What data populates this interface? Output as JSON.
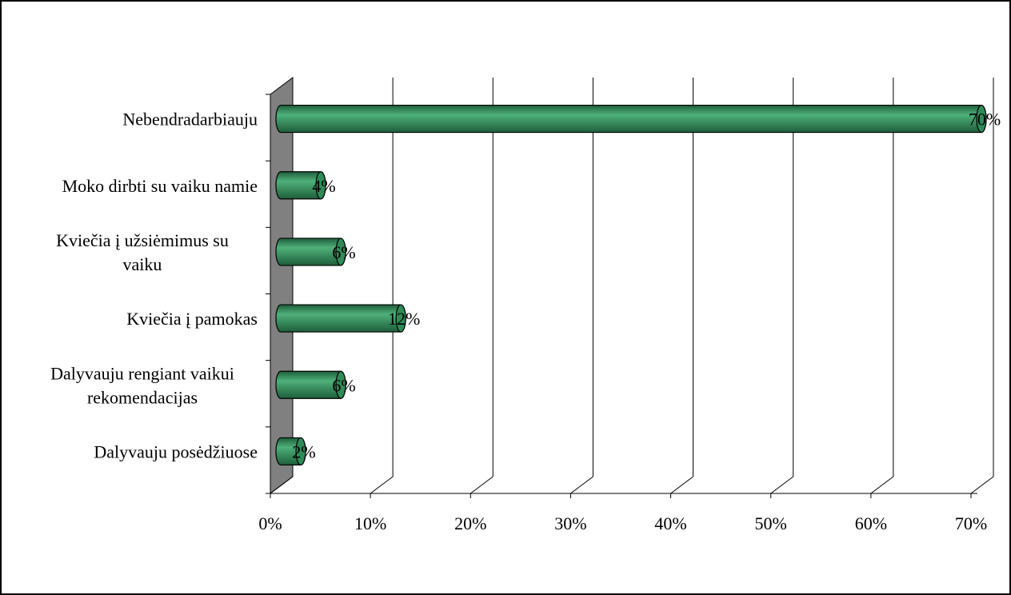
{
  "chart_data": {
    "type": "bar",
    "orientation": "horizontal",
    "style": "3d-cylinder",
    "categories": [
      [
        "Nebendradarbiauju"
      ],
      [
        "Moko dirbti su vaiku namie"
      ],
      [
        "Kviečia į užsiėmimus su",
        "vaiku"
      ],
      [
        "Kviečia į pamokas"
      ],
      [
        "Dalyvauju rengiant vaikui",
        "rekomendacijas"
      ],
      [
        "Dalyvauju posėdžiuose"
      ]
    ],
    "values": [
      70,
      4,
      6,
      12,
      6,
      2
    ],
    "data_labels": [
      "70%",
      "4%",
      "6%",
      "12%",
      "6%",
      "2%"
    ],
    "x_ticks": [
      "0%",
      "10%",
      "20%",
      "30%",
      "40%",
      "50%",
      "60%",
      "70%"
    ],
    "xlim": [
      0,
      70
    ],
    "grid": true,
    "legend": "none",
    "colors": {
      "bar": "#2e8b57",
      "bar_dark": "#1d5e3a",
      "bar_light": "#4fb07a",
      "wall": "#808080",
      "frame": "#000000",
      "grid": "#000000"
    }
  }
}
